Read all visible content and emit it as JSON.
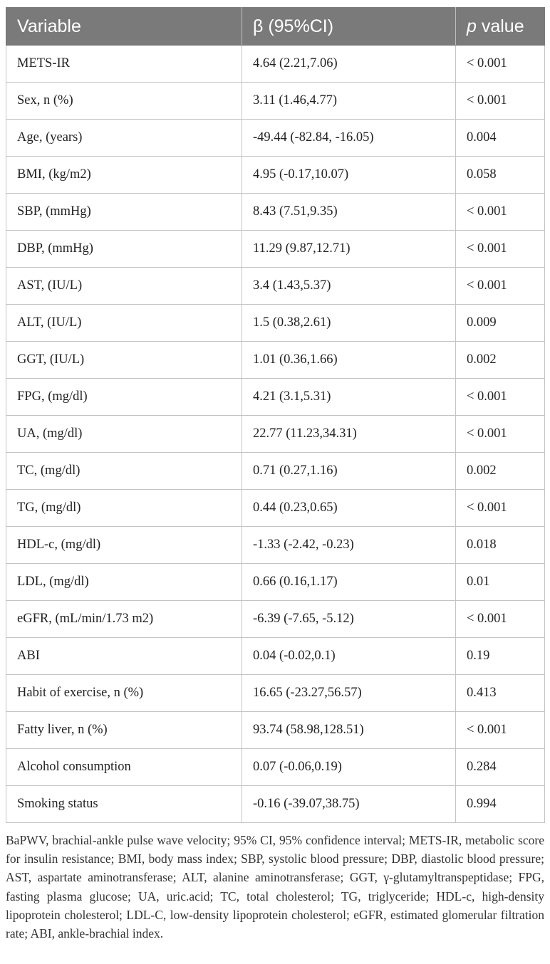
{
  "table": {
    "headers": {
      "variable": "Variable",
      "beta": "β (95%CI)",
      "p_italic": "p",
      "p_rest": " value"
    },
    "rows": [
      {
        "variable": "METS-IR",
        "beta": "4.64 (2.21,7.06)",
        "p": "< 0.001"
      },
      {
        "variable": "Sex, n (%)",
        "beta": "3.11 (1.46,4.77)",
        "p": "< 0.001"
      },
      {
        "variable": "Age, (years)",
        "beta": "-49.44 (-82.84, -16.05)",
        "p": "0.004"
      },
      {
        "variable": "BMI, (kg/m2)",
        "beta": "4.95 (-0.17,10.07)",
        "p": "0.058"
      },
      {
        "variable": "SBP, (mmHg)",
        "beta": "8.43 (7.51,9.35)",
        "p": "< 0.001"
      },
      {
        "variable": "DBP, (mmHg)",
        "beta": "11.29 (9.87,12.71)",
        "p": "< 0.001"
      },
      {
        "variable": "AST, (IU/L)",
        "beta": "3.4 (1.43,5.37)",
        "p": "< 0.001"
      },
      {
        "variable": "ALT, (IU/L)",
        "beta": "1.5 (0.38,2.61)",
        "p": "0.009"
      },
      {
        "variable": "GGT, (IU/L)",
        "beta": "1.01 (0.36,1.66)",
        "p": "0.002"
      },
      {
        "variable": "FPG, (mg/dl)",
        "beta": "4.21 (3.1,5.31)",
        "p": "< 0.001"
      },
      {
        "variable": "UA, (mg/dl)",
        "beta": "22.77 (11.23,34.31)",
        "p": "< 0.001"
      },
      {
        "variable": "TC, (mg/dl)",
        "beta": "0.71 (0.27,1.16)",
        "p": "0.002"
      },
      {
        "variable": "TG, (mg/dl)",
        "beta": "0.44 (0.23,0.65)",
        "p": "< 0.001"
      },
      {
        "variable": "HDL-c, (mg/dl)",
        "beta": "-1.33 (-2.42, -0.23)",
        "p": "0.018"
      },
      {
        "variable": "LDL, (mg/dl)",
        "beta": "0.66 (0.16,1.17)",
        "p": "0.01"
      },
      {
        "variable": "eGFR, (mL/min/1.73 m2)",
        "beta": "-6.39 (-7.65, -5.12)",
        "p": "< 0.001"
      },
      {
        "variable": "ABI",
        "beta": "0.04 (-0.02,0.1)",
        "p": "0.19"
      },
      {
        "variable": "Habit of exercise, n (%)",
        "beta": "16.65 (-23.27,56.57)",
        "p": "0.413"
      },
      {
        "variable": "Fatty liver, n (%)",
        "beta": "93.74 (58.98,128.51)",
        "p": "< 0.001"
      },
      {
        "variable": "Alcohol consumption",
        "beta": "0.07 (-0.06,0.19)",
        "p": "0.284"
      },
      {
        "variable": "Smoking status",
        "beta": "-0.16 (-39.07,38.75)",
        "p": "0.994"
      }
    ]
  },
  "footnote": "BaPWV, brachial-ankle pulse wave velocity; 95% CI, 95% confidence interval; METS-IR, metabolic score for insulin resistance; BMI, body mass index; SBP, systolic blood pressure; DBP, diastolic blood pressure; AST, aspartate aminotransferase; ALT, alanine aminotransferase; GGT, γ-glutamyltranspeptidase; FPG, fasting plasma glucose; UA, uric.acid; TC, total cholesterol; TG, triglyceride; HDL-c, high-density lipoprotein cholesterol; LDL-C, low-density lipoprotein cholesterol; eGFR, estimated glomerular filtration rate; ABI, ankle-brachial index.",
  "colors": {
    "header_bg": "#7a7a7a",
    "header_text": "#ffffff",
    "grid": "#c4c4c4"
  }
}
